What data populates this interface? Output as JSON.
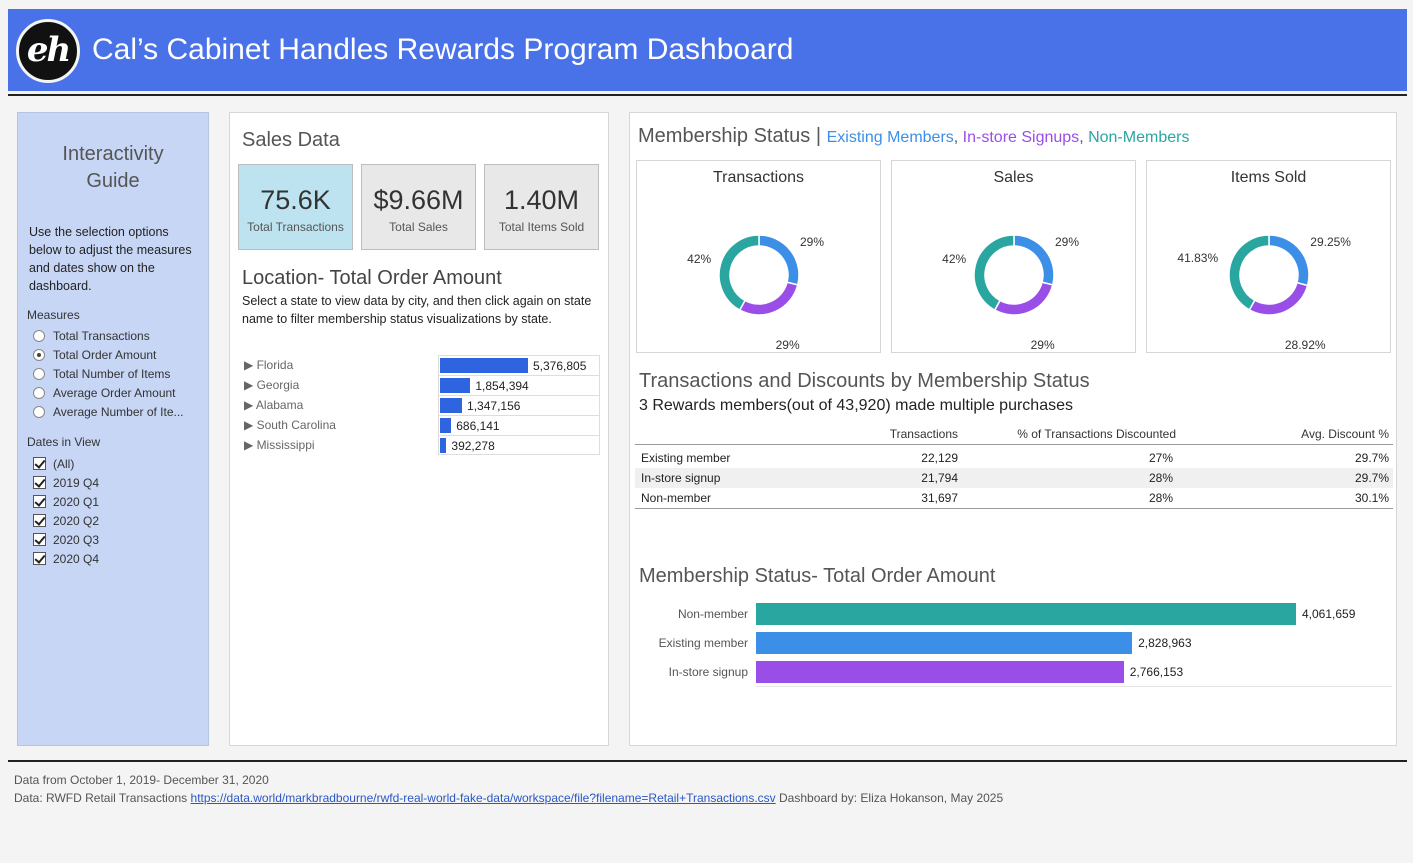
{
  "header": {
    "logo_text": "eh",
    "title": "Cal’s Cabinet Handles Rewards Program Dashboard"
  },
  "guide": {
    "title_line1": "Interactivity",
    "title_line2": "Guide",
    "description": "Use the selection options below to adjust the measures and dates show on the dashboard.",
    "measures_label": "Measures",
    "measures": [
      {
        "label": "Total Transactions",
        "selected": false
      },
      {
        "label": "Total Order Amount",
        "selected": true
      },
      {
        "label": "Total Number of Items",
        "selected": false
      },
      {
        "label": "Average Order Amount",
        "selected": false
      },
      {
        "label": "Average Number of Ite...",
        "selected": false
      }
    ],
    "dates_label": "Dates in View",
    "dates": [
      {
        "label": "(All)",
        "checked": true
      },
      {
        "label": "2019 Q4",
        "checked": true
      },
      {
        "label": "2020 Q1",
        "checked": true
      },
      {
        "label": "2020 Q2",
        "checked": true
      },
      {
        "label": "2020 Q3",
        "checked": true
      },
      {
        "label": "2020 Q4",
        "checked": true
      }
    ]
  },
  "sales": {
    "title": "Sales Data",
    "kpis": [
      {
        "value": "75.6K",
        "label": "Total Transactions",
        "active": true
      },
      {
        "value": "$9.66M",
        "label": "Total Sales",
        "active": false
      },
      {
        "value": "1.40M",
        "label": "Total Items Sold",
        "active": false
      }
    ],
    "location_title": "Location- Total Order Amount",
    "location_desc": "Select a state to view data by city, and then click again on state name to filter membership status visualizations by state.",
    "expand_glyph": "▶",
    "states": [
      {
        "name": "Florida",
        "value": 5376805,
        "label": "5,376,805"
      },
      {
        "name": "Georgia",
        "value": 1854394,
        "label": "1,854,394"
      },
      {
        "name": "Alabama",
        "value": 1347156,
        "label": "1,347,156"
      },
      {
        "name": "South Carolina",
        "value": 686141,
        "label": "686,141"
      },
      {
        "name": "Mississippi",
        "value": 392278,
        "label": "392,278"
      }
    ]
  },
  "membership": {
    "title": "Membership Status",
    "separator": "|",
    "legend": [
      {
        "label": "Existing Members",
        "color": "#3b8fe6"
      },
      {
        "label": "In-store Signups",
        "color": "#9a4ee8"
      },
      {
        "label": "Non-Members",
        "color": "#2aa6a0"
      }
    ],
    "donuts": [
      {
        "title": "Transactions",
        "slices": [
          {
            "name": "Existing member",
            "value": 29,
            "label": "29%",
            "color": "#3b8fe6"
          },
          {
            "name": "In-store signup",
            "value": 29,
            "label": "29%",
            "color": "#9a4ee8"
          },
          {
            "name": "Non-member",
            "value": 42,
            "label": "42%",
            "color": "#2aa6a0"
          }
        ]
      },
      {
        "title": "Sales",
        "slices": [
          {
            "name": "Existing member",
            "value": 29,
            "label": "29%",
            "color": "#3b8fe6"
          },
          {
            "name": "In-store signup",
            "value": 29,
            "label": "29%",
            "color": "#9a4ee8"
          },
          {
            "name": "Non-member",
            "value": 42,
            "label": "42%",
            "color": "#2aa6a0"
          }
        ]
      },
      {
        "title": "Items Sold",
        "slices": [
          {
            "name": "Existing member",
            "value": 29.25,
            "label": "29.25%",
            "color": "#3b8fe6"
          },
          {
            "name": "In-store signup",
            "value": 28.92,
            "label": "28.92%",
            "color": "#9a4ee8"
          },
          {
            "name": "Non-member",
            "value": 41.83,
            "label": "41.83%",
            "color": "#2aa6a0"
          }
        ]
      }
    ],
    "table_title": "Transactions and Discounts by Membership Status",
    "table_subtitle": "3 Rewards members(out of 43,920) made multiple purchases",
    "table_headers": [
      "Transactions",
      "% of Transactions Discounted",
      "Avg. Discount %"
    ],
    "table_rows": [
      {
        "status": "Existing member",
        "transactions": "22,129",
        "pct_discounted": "27%",
        "avg_discount": "29.7%"
      },
      {
        "status": "In-store signup",
        "transactions": "21,794",
        "pct_discounted": "28%",
        "avg_discount": "29.7%"
      },
      {
        "status": "Non-member",
        "transactions": "31,697",
        "pct_discounted": "28%",
        "avg_discount": "30.1%"
      }
    ],
    "bar_title": "Membership Status- Total Order Amount",
    "bars": [
      {
        "name": "Non-member",
        "value": 4061659,
        "label": "4,061,659",
        "color": "#2aa6a0"
      },
      {
        "name": "Existing member",
        "value": 2828963,
        "label": "2,828,963",
        "color": "#3b8fe6"
      },
      {
        "name": "In-store signup",
        "value": 2766153,
        "label": "2,766,153",
        "color": "#9a4ee8"
      }
    ]
  },
  "footer": {
    "line1": "Data from October 1, 2019- December 31, 2020",
    "line2_prefix": "Data: RWFD Retail Transactions",
    "link": "https://data.world/markbradbourne/rwfd-real-world-fake-data/workspace/file?filename=Retail+Transactions.csv",
    "line2_suffix": "Dashboard by: Eliza Hokanson, May 2025"
  }
}
